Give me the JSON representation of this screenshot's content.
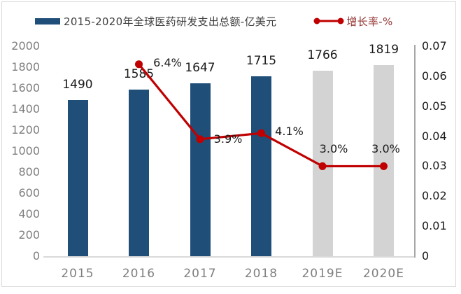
{
  "colors": {
    "bar_actual": "#1F4E79",
    "bar_estimate": "#D3D3D3",
    "line": "#C00000",
    "axis_label_gray": "#7F7F7F",
    "data_label": "#1A1A1A",
    "frame_border": "#D9D9D9",
    "legend_bar_text": "#3F3F3F",
    "legend_line_text": "#943735"
  },
  "chart_data": {
    "type": "bar",
    "subtype": "combo-bar-line-dual-axis",
    "categories": [
      "2015",
      "2016",
      "2017",
      "2018",
      "2019E",
      "2020E"
    ],
    "series": [
      {
        "name": "2015-2020年全球医药研发支出总额-亿美元",
        "type": "bar",
        "axis": "left",
        "values": [
          1490,
          1585,
          1647,
          1715,
          1766,
          1819
        ],
        "labels": [
          "1490",
          "1585",
          "1647",
          "1715",
          "1766",
          "1819"
        ],
        "bar_styles": [
          "actual",
          "actual",
          "actual",
          "actual",
          "estimate",
          "estimate"
        ]
      },
      {
        "name": "增长率-%",
        "type": "line",
        "axis": "right",
        "values": [
          null,
          0.064,
          0.039,
          0.041,
          0.03,
          0.03
        ],
        "labels": [
          "",
          "6.4%",
          "3.9%",
          "4.1%",
          "3.0%",
          "3.0%"
        ]
      }
    ],
    "left_axis": {
      "min": 0,
      "max": 2000,
      "step": 200,
      "ticks": [
        "2000",
        "1800",
        "1600",
        "1400",
        "1200",
        "1000",
        "800",
        "600",
        "400",
        "200",
        "0"
      ]
    },
    "right_axis": {
      "min": 0,
      "max": 0.07,
      "step": 0.01,
      "ticks": [
        "0.07",
        "0.06",
        "0.05",
        "0.04",
        "0.03",
        "0.02",
        "0.01",
        "0"
      ]
    },
    "grid": false,
    "legend_position": "top"
  }
}
